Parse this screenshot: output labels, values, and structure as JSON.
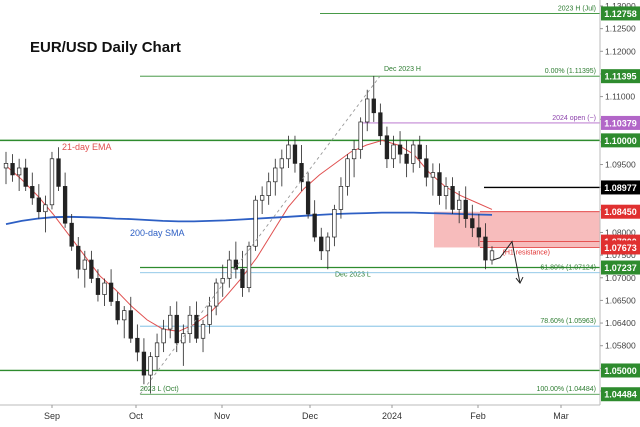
{
  "chart_data": {
    "type": "candlestick",
    "title": "EUR/USD Daily Chart",
    "x_tick_labels": [
      "Sep",
      "Oct",
      "Nov",
      "Dec",
      "2024",
      "Feb",
      "Mar"
    ],
    "y_tick_labels": [
      "1.13000",
      "1.12500",
      "1.12000",
      "1.11500",
      "1.11000",
      "1.10500",
      "1.10000",
      "1.09500",
      "1.09000",
      "1.08500",
      "1.08000",
      "1.07500",
      "1.07000",
      "1.06500",
      "1.06400",
      "1.05800",
      "1.05200",
      "1.04600"
    ],
    "ylim": [
      1.0425,
      1.1305
    ],
    "horizontal_levels": [
      {
        "value": 1.12758,
        "label": "1.12758",
        "color": "#2e8b2e",
        "text_color": "#ffffff",
        "annotation": "2023 H (Jul)"
      },
      {
        "value": 1.11395,
        "label": "1.11395",
        "color": "#2e8b2e",
        "text_color": "#ffffff",
        "annotation": "0.00% (1.11395)"
      },
      {
        "value": 1.10379,
        "label": "1.10379",
        "color": "#b266c8",
        "text_color": "#ffffff",
        "annotation": "2024 open (~)"
      },
      {
        "value": 1.1,
        "label": "1.10000",
        "color": "#2e8b2e",
        "text_color": "#ffffff",
        "annotation": ""
      },
      {
        "value": 1.08977,
        "label": "1.08977",
        "color": "#000000",
        "text_color": "#ffffff",
        "annotation": ""
      },
      {
        "value": 1.0845,
        "label": "1.08450",
        "color": "#e03030",
        "text_color": "#ffffff",
        "annotation": ""
      },
      {
        "value": 1.078,
        "label": "1.07800",
        "color": "#e03030",
        "text_color": "#ffffff",
        "annotation": ""
      },
      {
        "value": 1.07673,
        "label": "1.07673",
        "color": "#e03030",
        "text_color": "#ffffff",
        "annotation": "(H1 resistance)"
      },
      {
        "value": 1.07237,
        "label": "1.07237",
        "color": "#2e8b2e",
        "text_color": "#ffffff",
        "annotation": "Dec 2023 L"
      },
      {
        "value": 1.07124,
        "label": "",
        "color": "#6fb7e0",
        "text_color": "#2e7d32",
        "annotation": "61.80% (1.07124)"
      },
      {
        "value": 1.05963,
        "label": "",
        "color": "#6fb7e0",
        "text_color": "#2e7d32",
        "annotation": "78.60% (1.05963)"
      },
      {
        "value": 1.05,
        "label": "1.05000",
        "color": "#2e8b2e",
        "text_color": "#ffffff",
        "annotation": ""
      },
      {
        "value": 1.04484,
        "label": "1.04484",
        "color": "#2e8b2e",
        "text_color": "#ffffff",
        "annotation": "100.00% (1.04484)"
      }
    ],
    "annotations": {
      "dec_high": "Dec 2023 H",
      "oct_low": "2023 L (Oct)",
      "ema21": "21-day EMA",
      "sma200": "200-day SMA"
    },
    "resistance_zone": {
      "from": 1.07673,
      "to": 1.0845,
      "color": "#f4a6a6"
    },
    "series": [
      {
        "name": "21-day EMA",
        "color": "#e05050",
        "values": [
          1.0945,
          1.0915,
          1.088,
          1.084,
          1.0795,
          1.075,
          1.0705,
          1.0675,
          1.064,
          1.061,
          1.059,
          1.0585,
          1.06,
          1.0625,
          1.066,
          1.07,
          1.0745,
          1.08,
          1.0855,
          1.0895,
          1.0925,
          1.095,
          1.0975,
          1.099,
          1.1,
          1.099,
          1.097,
          1.093,
          1.09,
          1.088,
          1.0865,
          1.085
        ]
      },
      {
        "name": "200-day SMA",
        "color": "#2d5fc4",
        "values": [
          1.0818,
          1.0825,
          1.083,
          1.0833,
          1.0834,
          1.0833,
          1.0832,
          1.083,
          1.0829,
          1.0827,
          1.0825,
          1.0824,
          1.0824,
          1.0825,
          1.0826,
          1.0828,
          1.083,
          1.0832,
          1.0834,
          1.0836,
          1.0838,
          1.084,
          1.0841,
          1.0842,
          1.0843,
          1.0843,
          1.0843,
          1.0842,
          1.0841,
          1.084,
          1.0839,
          1.0838
        ]
      }
    ],
    "candles": [
      [
        1.094,
        1.0975,
        1.0905,
        1.095
      ],
      [
        1.095,
        1.097,
        1.091,
        1.0925
      ],
      [
        1.0925,
        1.096,
        1.089,
        1.094
      ],
      [
        1.094,
        1.096,
        1.089,
        1.09
      ],
      [
        1.09,
        1.093,
        1.086,
        1.0875
      ],
      [
        1.0875,
        1.0905,
        1.083,
        1.0845
      ],
      [
        1.0845,
        1.088,
        1.08,
        1.086
      ],
      [
        1.086,
        1.0975,
        1.085,
        1.096
      ],
      [
        1.096,
        1.0985,
        1.089,
        1.09
      ],
      [
        1.09,
        1.093,
        1.081,
        1.082
      ],
      [
        1.082,
        1.084,
        1.076,
        1.077
      ],
      [
        1.077,
        1.079,
        1.07,
        1.072
      ],
      [
        1.072,
        1.076,
        1.068,
        1.074
      ],
      [
        1.074,
        1.076,
        1.069,
        1.07
      ],
      [
        1.07,
        1.072,
        1.065,
        1.0665
      ],
      [
        1.0665,
        1.07,
        1.064,
        1.069
      ],
      [
        1.069,
        1.072,
        1.064,
        1.065
      ],
      [
        1.065,
        1.067,
        1.06,
        1.061
      ],
      [
        1.061,
        1.064,
        1.057,
        1.063
      ],
      [
        1.063,
        1.066,
        1.056,
        1.057
      ],
      [
        1.057,
        1.06,
        1.052,
        1.054
      ],
      [
        1.054,
        1.057,
        1.047,
        1.049
      ],
      [
        1.049,
        1.054,
        1.045,
        1.053
      ],
      [
        1.053,
        1.058,
        1.05,
        1.056
      ],
      [
        1.056,
        1.061,
        1.054,
        1.059
      ],
      [
        1.059,
        1.064,
        1.057,
        1.062
      ],
      [
        1.062,
        1.065,
        1.054,
        1.056
      ],
      [
        1.056,
        1.06,
        1.051,
        1.058
      ],
      [
        1.058,
        1.064,
        1.056,
        1.062
      ],
      [
        1.062,
        1.065,
        1.056,
        1.057
      ],
      [
        1.057,
        1.061,
        1.054,
        1.06
      ],
      [
        1.06,
        1.066,
        1.058,
        1.064
      ],
      [
        1.064,
        1.07,
        1.062,
        1.069
      ],
      [
        1.069,
        1.073,
        1.066,
        1.07
      ],
      [
        1.07,
        1.076,
        1.068,
        1.074
      ],
      [
        1.074,
        1.078,
        1.07,
        1.072
      ],
      [
        1.072,
        1.076,
        1.066,
        1.068
      ],
      [
        1.068,
        1.078,
        1.067,
        1.077
      ],
      [
        1.077,
        1.088,
        1.076,
        1.087
      ],
      [
        1.087,
        1.09,
        1.084,
        1.088
      ],
      [
        1.088,
        1.093,
        1.086,
        1.091
      ],
      [
        1.091,
        1.096,
        1.088,
        1.094
      ],
      [
        1.094,
        1.098,
        1.09,
        1.096
      ],
      [
        1.096,
        1.101,
        1.094,
        1.099
      ],
      [
        1.099,
        1.101,
        1.093,
        1.095
      ],
      [
        1.095,
        1.099,
        1.089,
        1.091
      ],
      [
        1.091,
        1.093,
        1.083,
        1.084
      ],
      [
        1.084,
        1.087,
        1.078,
        1.079
      ],
      [
        1.079,
        1.081,
        1.074,
        1.076
      ],
      [
        1.076,
        1.08,
        1.072,
        1.079
      ],
      [
        1.079,
        1.086,
        1.077,
        1.085
      ],
      [
        1.085,
        1.092,
        1.083,
        1.09
      ],
      [
        1.09,
        1.097,
        1.088,
        1.096
      ],
      [
        1.096,
        1.1,
        1.092,
        1.098
      ],
      [
        1.098,
        1.105,
        1.096,
        1.104
      ],
      [
        1.104,
        1.111,
        1.102,
        1.109
      ],
      [
        1.109,
        1.114,
        1.104,
        1.106
      ],
      [
        1.106,
        1.108,
        1.099,
        1.101
      ],
      [
        1.101,
        1.103,
        1.094,
        1.096
      ],
      [
        1.096,
        1.101,
        1.094,
        1.099
      ],
      [
        1.099,
        1.102,
        1.095,
        1.097
      ],
      [
        1.097,
        1.1,
        1.092,
        1.095
      ],
      [
        1.095,
        1.1,
        1.093,
        1.099
      ],
      [
        1.099,
        1.101,
        1.094,
        1.096
      ],
      [
        1.096,
        1.099,
        1.09,
        1.092
      ],
      [
        1.092,
        1.095,
        1.088,
        1.093
      ],
      [
        1.093,
        1.095,
        1.086,
        1.088
      ],
      [
        1.088,
        1.092,
        1.085,
        1.09
      ],
      [
        1.09,
        1.092,
        1.084,
        1.085
      ],
      [
        1.085,
        1.089,
        1.082,
        1.087
      ],
      [
        1.087,
        1.09,
        1.081,
        1.083
      ],
      [
        1.083,
        1.086,
        1.079,
        1.081
      ],
      [
        1.081,
        1.084,
        1.077,
        1.079
      ],
      [
        1.079,
        1.082,
        1.072,
        1.074
      ],
      [
        1.074,
        1.077,
        1.073,
        1.076
      ]
    ]
  }
}
